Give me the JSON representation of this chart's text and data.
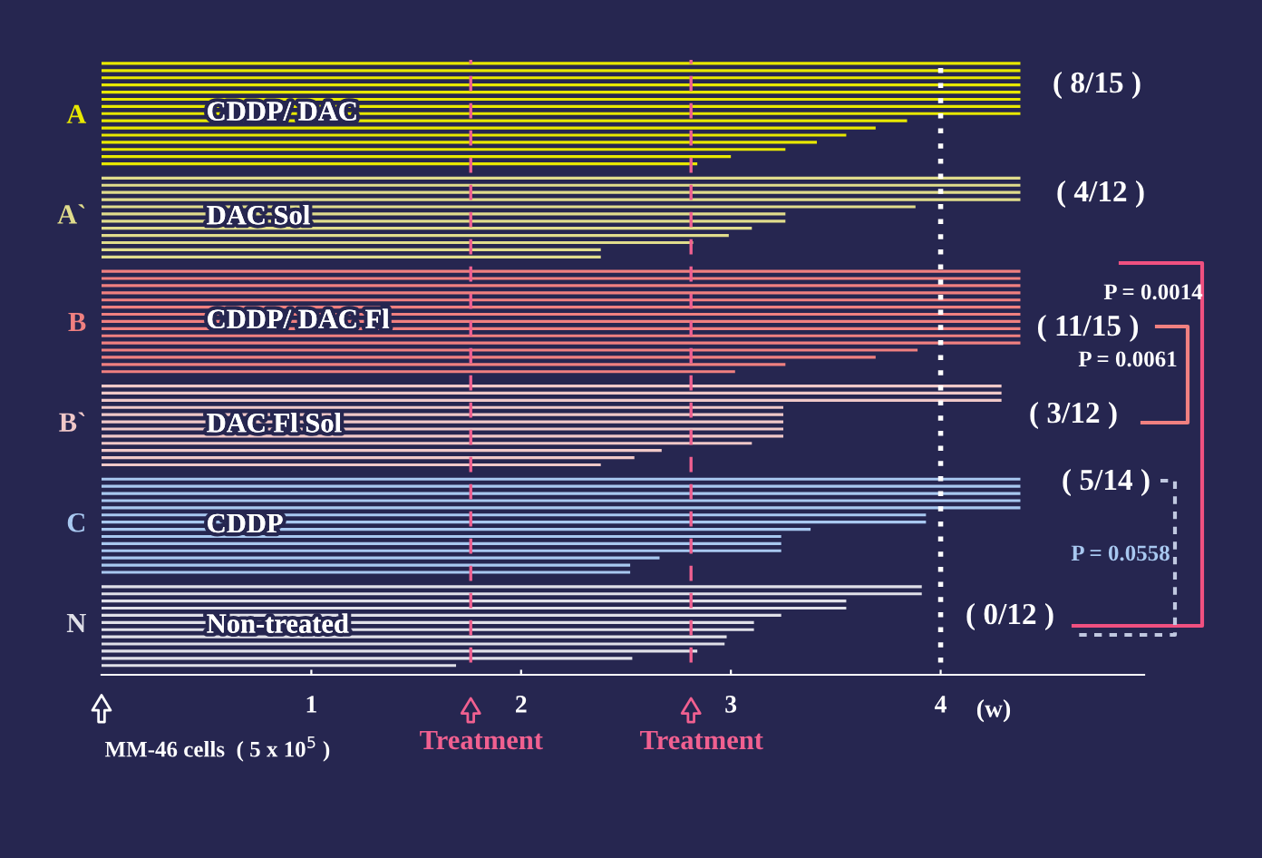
{
  "chart_data": {
    "type": "bar",
    "orientation": "horizontal",
    "xlabel": "(w)",
    "categories": [
      null,
      null,
      null,
      null,
      null,
      null,
      null,
      "A",
      null,
      null,
      null,
      null,
      null,
      null,
      null,
      null,
      null,
      null,
      null,
      null,
      null,
      "A`",
      null,
      null,
      null,
      null,
      null,
      null,
      null,
      null,
      null,
      null,
      null,
      null,
      null,
      null,
      "B",
      null,
      null,
      null,
      null,
      null,
      null,
      null,
      null,
      null,
      null,
      null,
      null,
      null,
      "B`",
      null,
      null,
      null,
      null,
      null,
      null,
      null,
      null,
      null,
      null,
      null,
      null,
      null,
      "C",
      null,
      null,
      null,
      null,
      null,
      null,
      null,
      null,
      null,
      null,
      null,
      null,
      null,
      "N",
      null,
      null,
      null,
      null,
      null,
      null
    ],
    "series": [
      {
        "name": "CDDP/ DAC",
        "color": "#e8e800",
        "values": [
          4.38,
          4.38,
          4.38,
          4.38,
          4.38,
          4.38,
          4.38,
          4.38,
          3.84,
          3.69,
          3.55,
          3.41,
          3.26,
          3.0,
          2.84,
          null,
          null,
          null,
          null,
          null,
          null,
          null,
          null,
          null,
          null,
          null,
          null,
          null,
          null,
          null,
          null,
          null,
          null,
          null,
          null,
          null,
          null,
          null,
          null,
          null,
          null,
          null,
          null,
          null,
          null,
          null,
          null,
          null,
          null,
          null,
          null,
          null,
          null,
          null,
          null,
          null,
          null,
          null,
          null,
          null,
          null,
          null,
          null,
          null,
          null,
          null,
          null,
          null,
          null,
          null,
          null,
          null,
          null,
          null,
          null,
          null,
          null,
          null,
          null,
          null,
          null,
          null,
          null,
          null,
          null
        ]
      },
      {
        "name": "DAC Sol",
        "color": "#e0dc8c",
        "values": [
          null,
          null,
          null,
          null,
          null,
          null,
          null,
          null,
          null,
          null,
          null,
          null,
          null,
          null,
          null,
          null,
          4.38,
          4.38,
          4.38,
          4.38,
          3.88,
          3.26,
          3.26,
          3.1,
          2.99,
          2.82,
          2.38,
          2.38,
          null,
          null,
          null,
          null,
          null,
          null,
          null,
          null,
          null,
          null,
          null,
          null,
          null,
          null,
          null,
          null,
          null,
          null,
          null,
          null,
          null,
          null,
          null,
          null,
          null,
          null,
          null,
          null,
          null,
          null,
          null,
          null,
          null,
          null,
          null,
          null,
          null,
          null,
          null,
          null,
          null,
          null,
          null,
          null,
          null,
          null,
          null,
          null,
          null,
          null,
          null,
          null,
          null,
          null,
          null,
          null,
          null
        ]
      },
      {
        "name": "CDDP/ DAC Fl",
        "color": "#f08080",
        "values": [
          null,
          null,
          null,
          null,
          null,
          null,
          null,
          null,
          null,
          null,
          null,
          null,
          null,
          null,
          null,
          null,
          null,
          null,
          null,
          null,
          null,
          null,
          null,
          null,
          null,
          null,
          null,
          null,
          null,
          4.38,
          4.38,
          4.38,
          4.38,
          4.38,
          4.38,
          4.38,
          4.38,
          4.38,
          4.38,
          4.38,
          3.89,
          3.69,
          3.26,
          3.02,
          null,
          null,
          null,
          null,
          null,
          null,
          null,
          null,
          null,
          null,
          null,
          null,
          null,
          null,
          null,
          null,
          null,
          null,
          null,
          null,
          null,
          null,
          null,
          null,
          null,
          null,
          null,
          null,
          null,
          null,
          null,
          null,
          null,
          null,
          null,
          null,
          null,
          null,
          null,
          null,
          null
        ]
      },
      {
        "name": "DAC Fl Sol",
        "color": "#f0c8c8",
        "values": [
          null,
          null,
          null,
          null,
          null,
          null,
          null,
          null,
          null,
          null,
          null,
          null,
          null,
          null,
          null,
          null,
          null,
          null,
          null,
          null,
          null,
          null,
          null,
          null,
          null,
          null,
          null,
          null,
          null,
          null,
          null,
          null,
          null,
          null,
          null,
          null,
          null,
          null,
          null,
          null,
          null,
          null,
          null,
          null,
          null,
          4.29,
          4.29,
          4.29,
          3.25,
          3.25,
          3.25,
          3.25,
          3.25,
          3.1,
          2.67,
          2.54,
          2.38,
          null,
          null,
          null,
          null,
          null,
          null,
          null,
          null,
          null,
          null,
          null,
          null,
          null,
          null,
          null,
          null,
          null,
          null,
          null,
          null,
          null,
          null,
          null,
          null,
          null,
          null,
          null,
          null
        ]
      },
      {
        "name": "CDDP",
        "color": "#a8c8f0",
        "values": [
          null,
          null,
          null,
          null,
          null,
          null,
          null,
          null,
          null,
          null,
          null,
          null,
          null,
          null,
          null,
          null,
          null,
          null,
          null,
          null,
          null,
          null,
          null,
          null,
          null,
          null,
          null,
          null,
          null,
          null,
          null,
          null,
          null,
          null,
          null,
          null,
          null,
          null,
          null,
          null,
          null,
          null,
          null,
          null,
          null,
          null,
          null,
          null,
          null,
          null,
          null,
          null,
          null,
          null,
          null,
          null,
          null,
          null,
          4.38,
          4.38,
          4.38,
          4.38,
          4.38,
          3.93,
          3.93,
          3.38,
          3.24,
          3.24,
          3.24,
          2.66,
          2.52,
          2.52,
          null,
          null,
          null,
          null,
          null,
          null,
          null,
          null,
          null,
          null,
          null,
          null,
          null
        ]
      },
      {
        "name": "Non-treated",
        "color": "#e0e0e8",
        "values": [
          null,
          null,
          null,
          null,
          null,
          null,
          null,
          null,
          null,
          null,
          null,
          null,
          null,
          null,
          null,
          null,
          null,
          null,
          null,
          null,
          null,
          null,
          null,
          null,
          null,
          null,
          null,
          null,
          null,
          null,
          null,
          null,
          null,
          null,
          null,
          null,
          null,
          null,
          null,
          null,
          null,
          null,
          null,
          null,
          null,
          null,
          null,
          null,
          null,
          null,
          null,
          null,
          null,
          null,
          null,
          null,
          null,
          null,
          null,
          null,
          null,
          null,
          null,
          null,
          null,
          null,
          null,
          null,
          null,
          null,
          null,
          null,
          null,
          3.91,
          3.91,
          3.55,
          3.55,
          3.24,
          3.11,
          3.11,
          2.98,
          2.97,
          2.84,
          2.53,
          1.69
        ]
      }
    ],
    "xlim": [
      0,
      4.97
    ],
    "xticks": [
      1,
      2,
      3,
      4
    ],
    "ref_lines": [
      {
        "axis": "x",
        "value": 1.76,
        "label": "Treatment",
        "color": "#f06090",
        "line_style": "dashed"
      },
      {
        "axis": "x",
        "value": 2.81,
        "label": "Treatment",
        "color": "#f06090",
        "line_style": "dashed"
      },
      {
        "axis": "x",
        "value": 4,
        "color": "#ffffff",
        "line_style": "dotted"
      }
    ],
    "annotations": [
      "( 8/15 )",
      "( 4/12 )",
      "( 11/15 )",
      "( 3/12 )",
      "( 5/14 )",
      "( 0/12 )",
      "P = 0.0014",
      "P = 0.0061",
      "P = 0.0558",
      "MM-46 cells  ( 5 x 10$^{5}$ )"
    ],
    "grid": false,
    "legend": false
  }
}
